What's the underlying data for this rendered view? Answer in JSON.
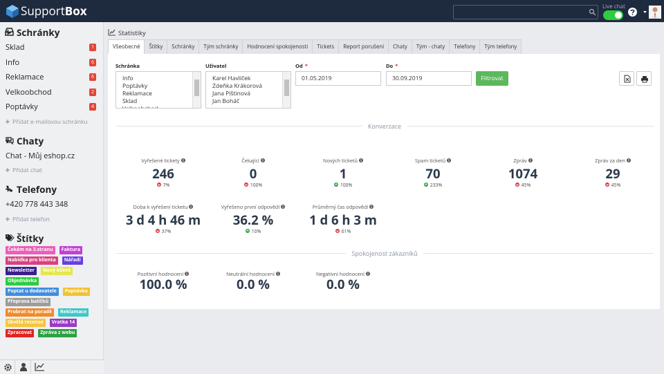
{
  "header": {
    "logo_prefix": "Support",
    "logo_suffix": "Box",
    "live_chat_label": "Live chat"
  },
  "sidebar": {
    "sections": [
      {
        "title": "Schránky",
        "items": [
          {
            "name": "Sklad",
            "count": 1
          },
          {
            "name": "Info",
            "count": 6
          },
          {
            "name": "Reklamace",
            "count": 6
          },
          {
            "name": "Velkoobchod",
            "count": 2
          },
          {
            "name": "Poptávky",
            "count": 4
          }
        ],
        "add_link": "Přidat e-mailovou schránku"
      },
      {
        "title": "Chaty",
        "items": [
          {
            "name": "Chat - Můj eshop.cz"
          }
        ],
        "add_link": "Přidat chat"
      },
      {
        "title": "Telefony",
        "items": [
          {
            "name": "+420 778 443 348"
          }
        ],
        "add_link": "Přidat telefon"
      },
      {
        "title": "Štítky",
        "tags": [
          {
            "label": "Čekám na 3.stranu",
            "color": "#ec5fb8"
          },
          {
            "label": "Faktura",
            "color": "#c43fd4"
          },
          {
            "label": "Nabídka pro klienta",
            "color": "#d8427f"
          },
          {
            "label": "Nářadí",
            "color": "#6a3fe0"
          },
          {
            "label": "Newsletter",
            "color": "#3a1f8c"
          },
          {
            "label": "Nový klient",
            "color": "#e6e650"
          },
          {
            "label": "Objednávka",
            "color": "#2ecc40"
          },
          {
            "label": "Poptat u dodavatele",
            "color": "#3e8ee0"
          },
          {
            "label": "Poptávka",
            "color": "#f2c230"
          },
          {
            "label": "Přeprava balíčků",
            "color": "#9c9c9c"
          },
          {
            "label": "Probrat na poradě",
            "color": "#f08a2c"
          },
          {
            "label": "Reklamace",
            "color": "#3cc8c8"
          },
          {
            "label": "Skvělá recenze",
            "color": "#f4c542"
          },
          {
            "label": "Vratka 14",
            "color": "#9a3bc4"
          },
          {
            "label": "Zpracovat",
            "color": "#e02424"
          },
          {
            "label": "Zpráva z webu",
            "color": "#2ea043"
          }
        ]
      }
    ]
  },
  "main": {
    "title": "Statistiky",
    "tabs": [
      "Všeobecné",
      "Štítky",
      "Schránky",
      "Tým schránky",
      "Hodnocení spokojenosti",
      "Tickets",
      "Report porušení",
      "Chaty",
      "Tým - chaty",
      "Telefony",
      "Tým telefony"
    ],
    "active_tab": 0,
    "filters": {
      "mailbox": {
        "label": "Schránka",
        "options": [
          "Info",
          "Poptávky",
          "Reklamace",
          "Sklad",
          "Velkoobchod"
        ]
      },
      "user": {
        "label": "Uživatel",
        "options": [
          "Karel Havlíček",
          "Zdeňka Krákorová",
          "Jana Pištinová",
          "Jan Boháč"
        ]
      },
      "from": {
        "label": "Od",
        "required": "*",
        "value": "01.05.2019"
      },
      "to": {
        "label": "Do",
        "required": "*",
        "value": "30.09.2019"
      },
      "submit": "Filtrovat"
    },
    "sections": [
      {
        "title": "Konverzace",
        "rows": [
          [
            {
              "label": "Vyřešené tickety",
              "value": "246",
              "change": {
                "direction": "down",
                "text": "7%"
              }
            },
            {
              "label": "Čekající",
              "value": "0",
              "change": {
                "direction": "down",
                "text": "100%"
              }
            },
            {
              "label": "Nových ticketů",
              "value": "1",
              "change": {
                "direction": "up",
                "text": "100%"
              }
            },
            {
              "label": "Spam ticketů",
              "value": "70",
              "change": {
                "direction": "up",
                "text": "233%"
              }
            },
            {
              "label": "Zpráv",
              "value": "1074",
              "change": {
                "direction": "down",
                "text": "45%"
              }
            },
            {
              "label": "Zpráv za den",
              "value": "29",
              "change": {
                "direction": "down",
                "text": "45%"
              }
            }
          ],
          [
            {
              "label": "Doba k vyřešení ticketu",
              "value": "3 d 4 h 46 m",
              "change": {
                "direction": "down",
                "text": "37%"
              }
            },
            {
              "label": "Vyřešeno první odpovědí",
              "value": "36.2 %",
              "change": {
                "direction": "up",
                "text": "10%"
              }
            },
            {
              "label": "Průměrný čas odpovědi",
              "value": "1 d 6 h 3 m",
              "change": {
                "direction": "down",
                "text": "61%"
              }
            }
          ]
        ]
      },
      {
        "title": "Spokojenost zákazníků",
        "rows": [
          [
            {
              "label": "Pozitivní hodnocení",
              "value": "100.0 %"
            },
            {
              "label": "Neutrální hodnocení",
              "value": "0.0 %"
            },
            {
              "label": "Negativní hodnocení",
              "value": "0.0 %"
            }
          ]
        ]
      }
    ]
  }
}
